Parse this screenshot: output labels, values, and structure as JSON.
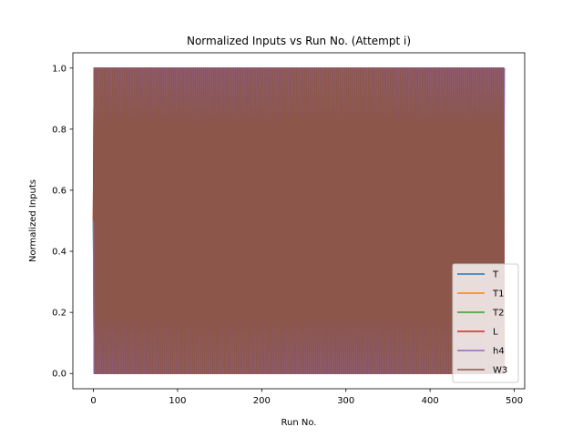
{
  "chart_data": {
    "type": "line",
    "title": "Normalized Inputs vs Run No. (Attempt i)",
    "xlabel": "Run No.",
    "ylabel": "Normalized Inputs",
    "xlim": [
      -24.4,
      512.4
    ],
    "ylim": [
      -0.05,
      1.05
    ],
    "x_ticks": [
      0,
      100,
      200,
      300,
      400,
      500
    ],
    "y_ticks": [
      0.0,
      0.2,
      0.4,
      0.6,
      0.8,
      1.0
    ],
    "x_tick_labels": [
      "0",
      "100",
      "200",
      "300",
      "400",
      "500"
    ],
    "y_tick_labels": [
      "0.0",
      "0.2",
      "0.4",
      "0.6",
      "0.8",
      "1.0"
    ],
    "n_points": 489,
    "x_range": [
      0,
      488
    ],
    "initial_value": 0.5,
    "pattern": "values alternate between 0.0 and 1.0 for every run after the first",
    "grid": false,
    "legend_position": "lower right",
    "series": [
      {
        "name": "T",
        "color": "#1f77b4",
        "values": [
          0.5,
          0.0,
          1.0,
          0.0,
          1.0
        ]
      },
      {
        "name": "T1",
        "color": "#ff7f0e",
        "values": [
          0.5,
          0.0,
          1.0,
          0.0,
          1.0
        ]
      },
      {
        "name": "T2",
        "color": "#2ca02c",
        "values": [
          0.5,
          0.0,
          1.0,
          0.0,
          1.0
        ]
      },
      {
        "name": "L",
        "color": "#d62728",
        "values": [
          0.5,
          0.0,
          1.0,
          0.0,
          1.0
        ]
      },
      {
        "name": "h4",
        "color": "#9467bd",
        "values": [
          0.5,
          0.0,
          1.0,
          0.0,
          1.0
        ]
      },
      {
        "name": "W3",
        "color": "#8c564b",
        "values": [
          0.5,
          0.0,
          1.0,
          0.0,
          1.0
        ]
      }
    ]
  }
}
